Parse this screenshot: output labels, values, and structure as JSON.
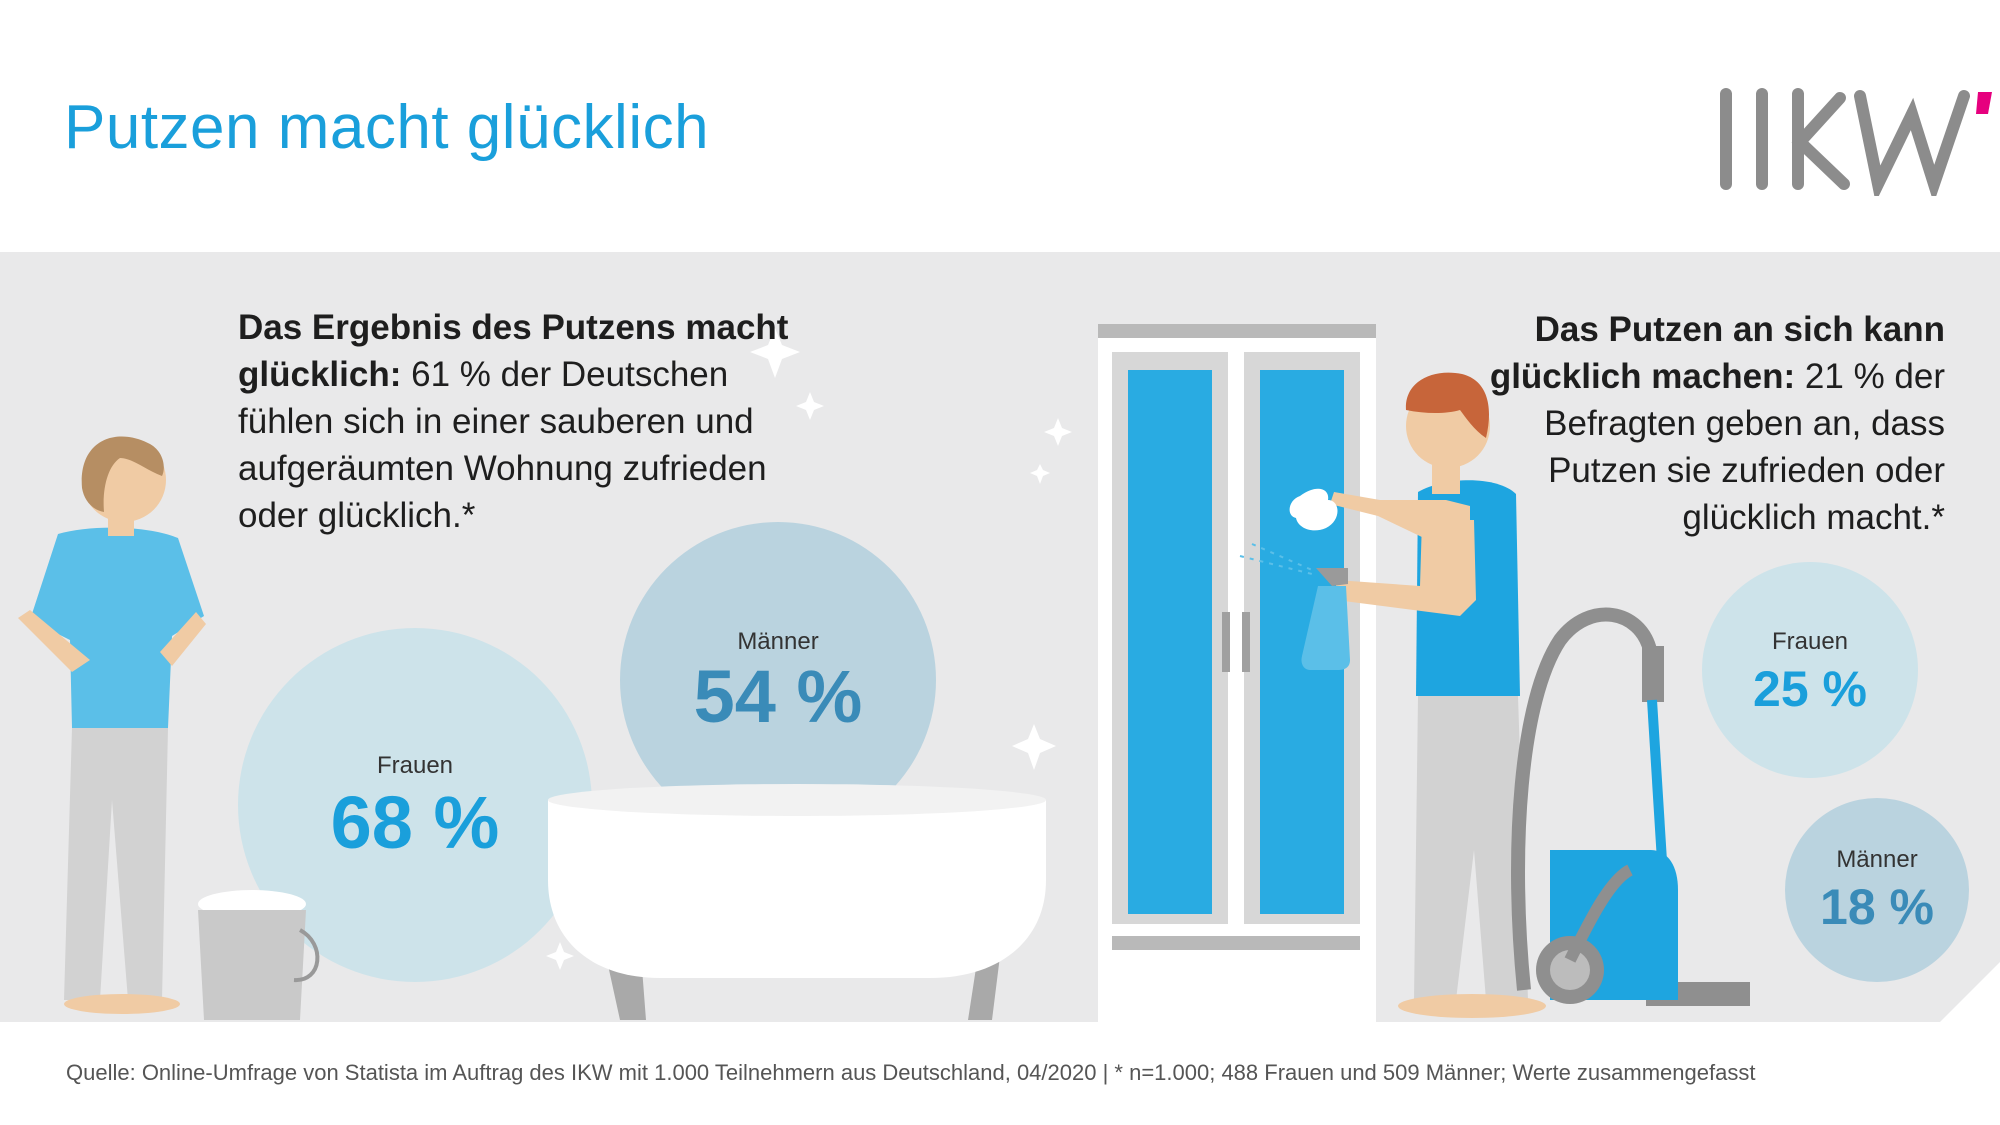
{
  "title": "Putzen macht glücklich",
  "logo_text": "IKW",
  "left_panel": {
    "bold_text": "Das Ergebnis des Putzens macht glücklich:",
    "text": " 61 % der Deutschen fühlen sich in einer sauberen und aufgeräumten Wohnung zufrieden oder glücklich.*"
  },
  "right_panel": {
    "bold_text": "Das Putzen an sich kann glücklich machen:",
    "text": " 21 % der Befragten geben an, dass Putzen sie zufrieden oder glücklich macht.*"
  },
  "footer": "Quelle: Online-Umfrage von Statista im Auftrag des IKW mit 1.000 Teilnehmern aus Deutschland, 04/2020 | * n=1.000; 488 Frauen und 509 Männer; Werte zusammengefasst",
  "colors": {
    "accent": "#1a9fdb",
    "logo_gray": "#8c8c8c",
    "logo_magenta": "#e6007e",
    "band": "#e9e9ea"
  },
  "chart_data": [
    {
      "type": "bubble",
      "categories": [
        "Frauen",
        "Männer"
      ],
      "values": [
        68,
        54
      ],
      "labels": [
        "68 %",
        "54 %"
      ],
      "unit": "%"
    },
    {
      "type": "bubble",
      "categories": [
        "Frauen",
        "Männer"
      ],
      "values": [
        25,
        18
      ],
      "labels": [
        "25 %",
        "18 %"
      ],
      "unit": "%"
    }
  ]
}
